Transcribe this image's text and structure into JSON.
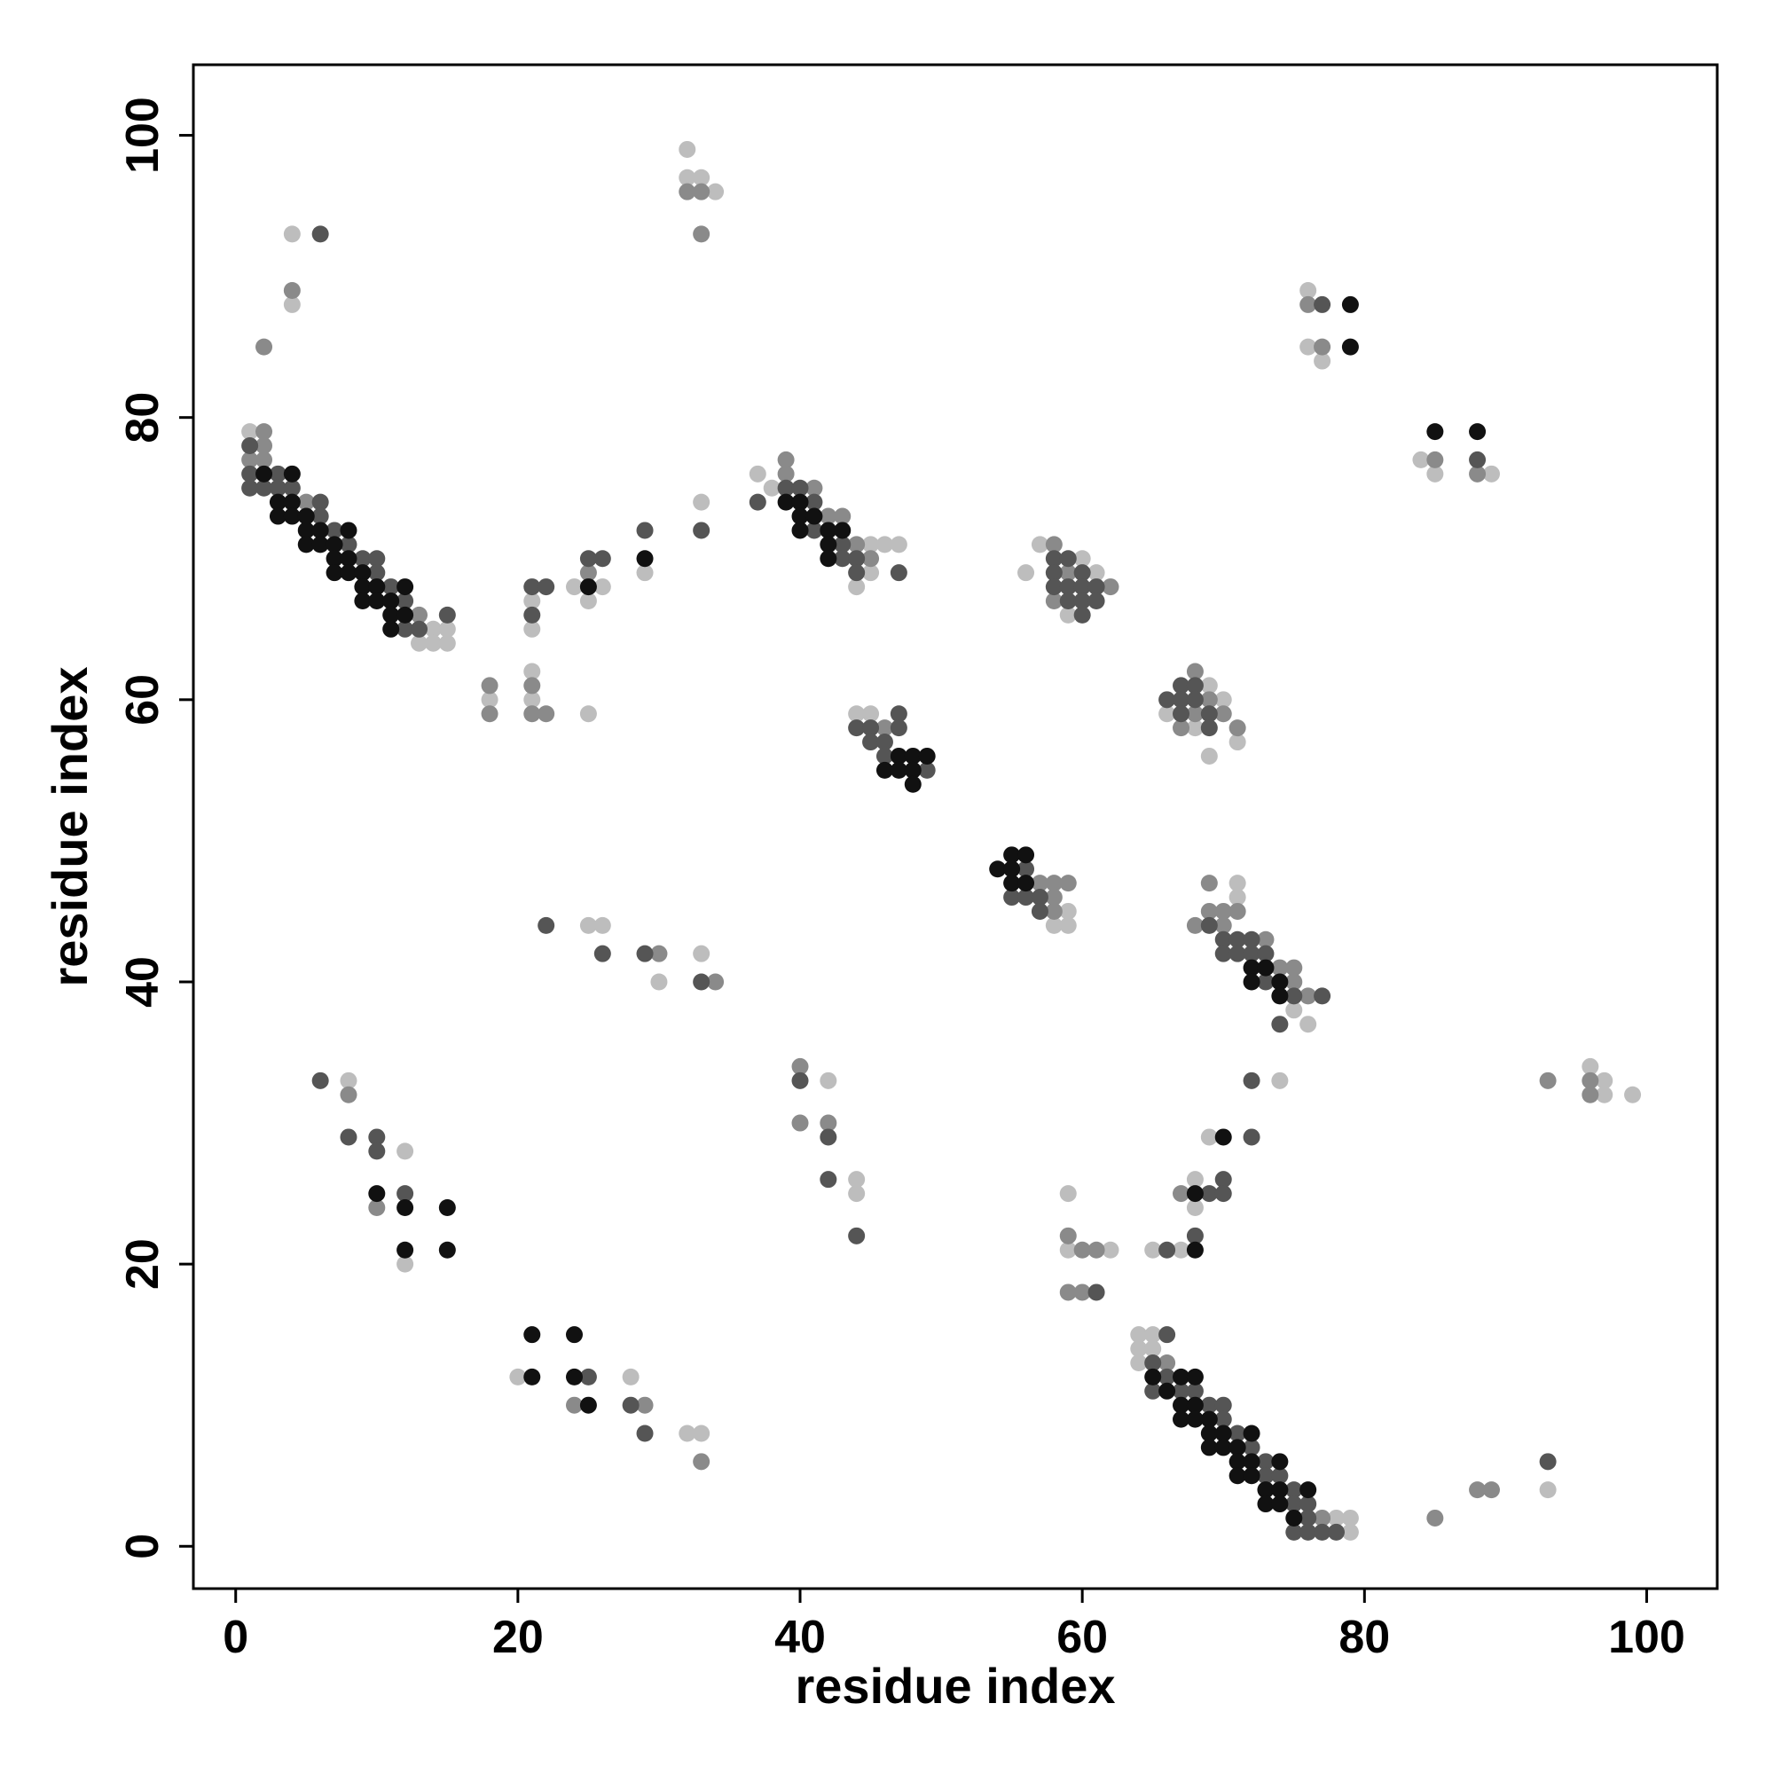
{
  "chart_data": {
    "type": "scatter",
    "xlabel": "residue index",
    "ylabel": "residue index",
    "xlim": [
      -3,
      105
    ],
    "ylim": [
      -3,
      105
    ],
    "xticks": [
      0,
      20,
      40,
      60,
      80,
      100
    ],
    "yticks": [
      0,
      20,
      40,
      60,
      80,
      100
    ],
    "series": [
      {
        "color": "#bdbdbd",
        "x": [
          1,
          13,
          14,
          14,
          15,
          15,
          4,
          4,
          18,
          21,
          21,
          21,
          21,
          24,
          25,
          26,
          25,
          29,
          32,
          32,
          33,
          34,
          33,
          37,
          38,
          44,
          45,
          45,
          46,
          47,
          44,
          45,
          58,
          59,
          59,
          57,
          56,
          59,
          60,
          61,
          66,
          68,
          69,
          69,
          70,
          71,
          71,
          71,
          75,
          76,
          25,
          26,
          30,
          33,
          76,
          76,
          77,
          84,
          85,
          89,
          8,
          12,
          12,
          20,
          28,
          32,
          33,
          42,
          44,
          44,
          59,
          59,
          62,
          65,
          67,
          68,
          68,
          69,
          74,
          64,
          64,
          64,
          65,
          65,
          78,
          79,
          79,
          93,
          96,
          97,
          97,
          99
        ],
        "values": [
          79,
          64,
          65,
          64,
          65,
          64,
          93,
          88,
          60,
          67,
          65,
          62,
          60,
          68,
          67,
          68,
          59,
          69,
          99,
          97,
          97,
          96,
          74,
          76,
          75,
          68,
          71,
          69,
          71,
          71,
          59,
          59,
          44,
          45,
          44,
          71,
          69,
          66,
          70,
          69,
          59,
          58,
          61,
          56,
          60,
          57,
          47,
          46,
          38,
          37,
          44,
          44,
          40,
          42,
          89,
          85,
          84,
          77,
          76,
          76,
          33,
          28,
          20,
          12,
          12,
          8,
          8,
          33,
          26,
          25,
          25,
          21,
          21,
          21,
          21,
          26,
          24,
          29,
          33,
          15,
          14,
          13,
          15,
          14,
          2,
          2,
          1,
          4,
          34,
          33,
          32,
          32
        ]
      },
      {
        "color": "#8a8a8a",
        "x": [
          1,
          2,
          2,
          2,
          5,
          13,
          2,
          4,
          18,
          18,
          21,
          21,
          22,
          25,
          32,
          33,
          33,
          39,
          39,
          41,
          42,
          43,
          44,
          45,
          46,
          57,
          58,
          58,
          58,
          59,
          58,
          58,
          59,
          62,
          67,
          68,
          68,
          69,
          70,
          71,
          69,
          68,
          69,
          70,
          70,
          71,
          73,
          74,
          75,
          75,
          76,
          30,
          34,
          76,
          77,
          85,
          88,
          8,
          10,
          24,
          29,
          33,
          40,
          40,
          42,
          59,
          60,
          61,
          59,
          60,
          67,
          66,
          77,
          85,
          88,
          89,
          93,
          96,
          96
        ],
        "values": [
          77,
          79,
          78,
          77,
          74,
          66,
          85,
          89,
          61,
          59,
          61,
          59,
          59,
          69,
          96,
          96,
          93,
          77,
          76,
          75,
          73,
          73,
          71,
          70,
          58,
          47,
          47,
          46,
          45,
          47,
          71,
          67,
          69,
          68,
          58,
          62,
          59,
          60,
          59,
          58,
          47,
          44,
          45,
          45,
          44,
          45,
          43,
          41,
          41,
          40,
          39,
          42,
          40,
          88,
          85,
          77,
          76,
          32,
          24,
          10,
          10,
          6,
          34,
          30,
          30,
          22,
          21,
          21,
          18,
          18,
          25,
          13,
          2,
          2,
          4,
          4,
          33,
          33,
          32
        ]
      },
      {
        "color": "#555555",
        "x": [
          1,
          1,
          1,
          2,
          3,
          3,
          4,
          6,
          6,
          7,
          8,
          9,
          10,
          10,
          11,
          12,
          12,
          13,
          15,
          6,
          21,
          21,
          22,
          25,
          26,
          29,
          33,
          37,
          39,
          40,
          41,
          41,
          43,
          43,
          44,
          44,
          47,
          44,
          45,
          45,
          46,
          46,
          47,
          47,
          49,
          55,
          56,
          56,
          57,
          57,
          58,
          58,
          58,
          59,
          59,
          59,
          60,
          60,
          60,
          60,
          61,
          61,
          66,
          67,
          67,
          67,
          68,
          68,
          69,
          69,
          69,
          70,
          70,
          71,
          71,
          72,
          72,
          73,
          73,
          74,
          75,
          77,
          22,
          26,
          29,
          33,
          77,
          88,
          6,
          8,
          10,
          10,
          12,
          25,
          28,
          29,
          40,
          42,
          42,
          44,
          61,
          66,
          68,
          69,
          70,
          70,
          72,
          72,
          65,
          65,
          66,
          66,
          67,
          68,
          69,
          70,
          70,
          71,
          72,
          73,
          73,
          74,
          75,
          75,
          75,
          76,
          76,
          76,
          77,
          78,
          93
        ],
        "values": [
          78,
          76,
          75,
          75,
          76,
          75,
          75,
          74,
          73,
          72,
          71,
          70,
          70,
          69,
          68,
          67,
          65,
          65,
          66,
          93,
          68,
          66,
          68,
          70,
          70,
          72,
          72,
          74,
          75,
          75,
          74,
          72,
          71,
          70,
          70,
          69,
          69,
          58,
          58,
          57,
          57,
          56,
          59,
          58,
          55,
          46,
          48,
          46,
          46,
          45,
          70,
          69,
          68,
          70,
          68,
          67,
          69,
          68,
          67,
          66,
          68,
          67,
          60,
          61,
          60,
          59,
          61,
          60,
          59,
          58,
          44,
          43,
          42,
          43,
          42,
          43,
          42,
          42,
          40,
          37,
          39,
          39,
          44,
          42,
          42,
          40,
          88,
          77,
          33,
          29,
          29,
          28,
          25,
          12,
          10,
          8,
          33,
          29,
          26,
          22,
          18,
          21,
          22,
          25,
          26,
          25,
          33,
          29,
          13,
          11,
          15,
          12,
          11,
          11,
          10,
          10,
          9,
          8,
          7,
          6,
          5,
          5,
          4,
          3,
          1,
          3,
          2,
          1,
          1,
          1,
          6
        ]
      },
      {
        "color": "#111111",
        "x": [
          2,
          3,
          3,
          4,
          4,
          4,
          5,
          5,
          5,
          6,
          6,
          7,
          7,
          7,
          8,
          8,
          8,
          9,
          9,
          9,
          10,
          10,
          11,
          11,
          11,
          12,
          12,
          25,
          29,
          39,
          40,
          40,
          40,
          41,
          42,
          42,
          42,
          43,
          46,
          47,
          47,
          48,
          48,
          48,
          49,
          54,
          55,
          55,
          55,
          56,
          56,
          72,
          72,
          73,
          74,
          74,
          79,
          79,
          85,
          88,
          10,
          12,
          15,
          12,
          15,
          21,
          21,
          24,
          24,
          25,
          68,
          68,
          70,
          65,
          66,
          67,
          67,
          67,
          68,
          68,
          68,
          69,
          69,
          69,
          70,
          70,
          71,
          71,
          71,
          72,
          72,
          72,
          73,
          73,
          74,
          74,
          74,
          75,
          76
        ],
        "values": [
          76,
          74,
          73,
          76,
          74,
          73,
          73,
          72,
          71,
          72,
          71,
          71,
          70,
          69,
          72,
          70,
          69,
          69,
          68,
          67,
          68,
          67,
          67,
          66,
          65,
          68,
          66,
          68,
          70,
          74,
          74,
          73,
          72,
          73,
          72,
          71,
          70,
          72,
          55,
          56,
          55,
          56,
          55,
          54,
          56,
          48,
          49,
          48,
          47,
          49,
          47,
          41,
          40,
          41,
          40,
          39,
          88,
          85,
          79,
          79,
          25,
          24,
          24,
          21,
          21,
          15,
          12,
          15,
          12,
          10,
          25,
          21,
          29,
          12,
          11,
          12,
          10,
          9,
          12,
          10,
          9,
          9,
          8,
          7,
          8,
          7,
          7,
          6,
          5,
          8,
          6,
          5,
          4,
          3,
          6,
          4,
          3,
          2,
          4
        ]
      }
    ]
  }
}
